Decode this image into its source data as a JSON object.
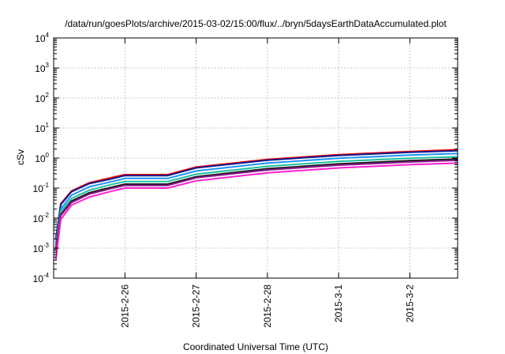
{
  "chart_data": {
    "type": "line",
    "title": "/data/run/goesPlots/archive/2015-03-02/15:00/flux/../bryn/5daysEarthDataAccumulated.plot",
    "xlabel": "Coordinated Universal Time (UTC)",
    "ylabel": "cSv",
    "yscale": "log",
    "ylim": [
      0.0001,
      10000
    ],
    "xlim_days": [
      0,
      5.67
    ],
    "grid": true,
    "x_tick_labels": [
      "2015-2-26",
      "2015-2-27",
      "2015-2-28",
      "2015-3-1",
      "2015-3-2"
    ],
    "x_tick_days": [
      1,
      2,
      3,
      4,
      5
    ],
    "y_ticks": [
      {
        "value": 0.0001,
        "base": "10",
        "exp": "-4"
      },
      {
        "value": 0.001,
        "base": "10",
        "exp": "-3"
      },
      {
        "value": 0.01,
        "base": "10",
        "exp": "-2"
      },
      {
        "value": 0.1,
        "base": "10",
        "exp": "-1"
      },
      {
        "value": 1,
        "base": "10",
        "exp": "0"
      },
      {
        "value": 10,
        "base": "10",
        "exp": "1"
      },
      {
        "value": 100,
        "base": "10",
        "exp": "2"
      },
      {
        "value": 1000,
        "base": "10",
        "exp": "3"
      },
      {
        "value": 10000,
        "base": "10",
        "exp": "4"
      }
    ],
    "series": [
      {
        "color": "#ff0000",
        "x": [
          0.03,
          0.1,
          0.25,
          0.5,
          0.8,
          1.0,
          1.3,
          1.6,
          2.0,
          3.0,
          4.0,
          5.0,
          5.67
        ],
        "y": [
          0.002,
          0.03,
          0.08,
          0.15,
          0.22,
          0.28,
          0.28,
          0.28,
          0.5,
          0.9,
          1.3,
          1.65,
          1.9
        ]
      },
      {
        "color": "#0b1d8c",
        "x": [
          0.03,
          0.1,
          0.25,
          0.5,
          0.8,
          1.0,
          1.3,
          1.6,
          2.0,
          3.0,
          4.0,
          5.0,
          5.67
        ],
        "y": [
          0.002,
          0.028,
          0.075,
          0.14,
          0.2,
          0.26,
          0.26,
          0.26,
          0.47,
          0.85,
          1.22,
          1.55,
          1.75
        ]
      },
      {
        "color": "#1e90ff",
        "x": [
          0.03,
          0.1,
          0.25,
          0.5,
          0.8,
          1.0,
          1.3,
          1.6,
          2.0,
          3.0,
          4.0,
          5.0,
          5.67
        ],
        "y": [
          0.0015,
          0.02,
          0.058,
          0.11,
          0.16,
          0.21,
          0.21,
          0.21,
          0.37,
          0.68,
          0.98,
          1.25,
          1.42
        ]
      },
      {
        "color": "#20c0a0",
        "x": [
          0.03,
          0.1,
          0.25,
          0.5,
          0.8,
          1.0,
          1.3,
          1.6,
          2.0,
          3.0,
          4.0,
          5.0,
          5.67
        ],
        "y": [
          0.0012,
          0.016,
          0.045,
          0.085,
          0.13,
          0.165,
          0.165,
          0.165,
          0.29,
          0.53,
          0.77,
          0.98,
          1.1
        ]
      },
      {
        "color": "#1a1a1a",
        "x": [
          0.03,
          0.1,
          0.25,
          0.5,
          0.8,
          1.0,
          1.3,
          1.6,
          2.0,
          3.0,
          4.0,
          5.0,
          5.67
        ],
        "y": [
          0.001,
          0.013,
          0.037,
          0.07,
          0.105,
          0.135,
          0.135,
          0.135,
          0.24,
          0.44,
          0.64,
          0.82,
          0.93
        ]
      },
      {
        "color": "#8b1a8b",
        "x": [
          0.03,
          0.1,
          0.25,
          0.5,
          0.8,
          1.0,
          1.3,
          1.6,
          2.0,
          3.0,
          4.0,
          5.0,
          5.67
        ],
        "y": [
          0.0009,
          0.012,
          0.033,
          0.063,
          0.095,
          0.122,
          0.122,
          0.122,
          0.22,
          0.4,
          0.58,
          0.74,
          0.84
        ]
      },
      {
        "color": "#ff20d0",
        "x": [
          0.03,
          0.1,
          0.25,
          0.5,
          0.8,
          1.0,
          1.3,
          1.6,
          2.0,
          3.0,
          4.0,
          5.0,
          5.67
        ],
        "y": [
          0.0004,
          0.009,
          0.027,
          0.05,
          0.077,
          0.1,
          0.1,
          0.1,
          0.175,
          0.32,
          0.47,
          0.6,
          0.68
        ]
      }
    ]
  }
}
